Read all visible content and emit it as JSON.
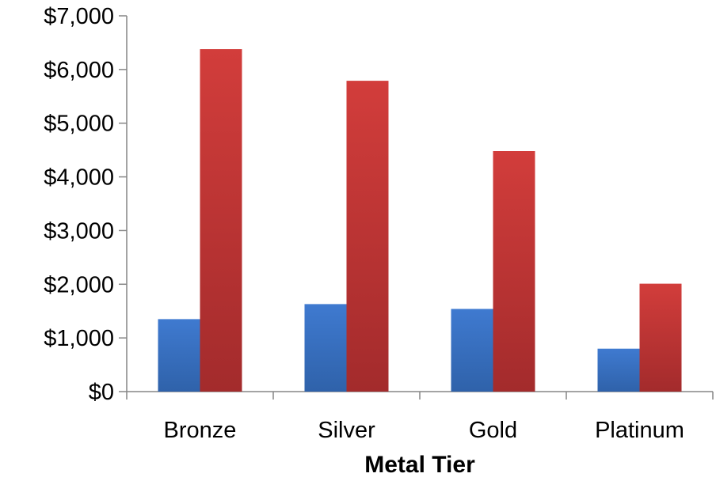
{
  "chart_data": {
    "type": "bar",
    "title": "",
    "xlabel": "Metal Tier",
    "ylabel": "",
    "categories": [
      "Bronze",
      "Silver",
      "Gold",
      "Platinum"
    ],
    "series": [
      {
        "values": [
          1350,
          1630,
          1540,
          800
        ],
        "color": "#3b73c4"
      },
      {
        "values": [
          6380,
          5790,
          4480,
          2010
        ],
        "color": "#c9373a"
      }
    ],
    "ylim": [
      0,
      7000
    ],
    "yticks": [
      0,
      1000,
      2000,
      3000,
      4000,
      5000,
      6000,
      7000
    ],
    "ytick_labels": [
      "$0",
      "$1,000",
      "$2,000",
      "$3,000",
      "$4,000",
      "$5,000",
      "$6,000",
      "$7,000"
    ],
    "grid": false,
    "legend": "none"
  }
}
